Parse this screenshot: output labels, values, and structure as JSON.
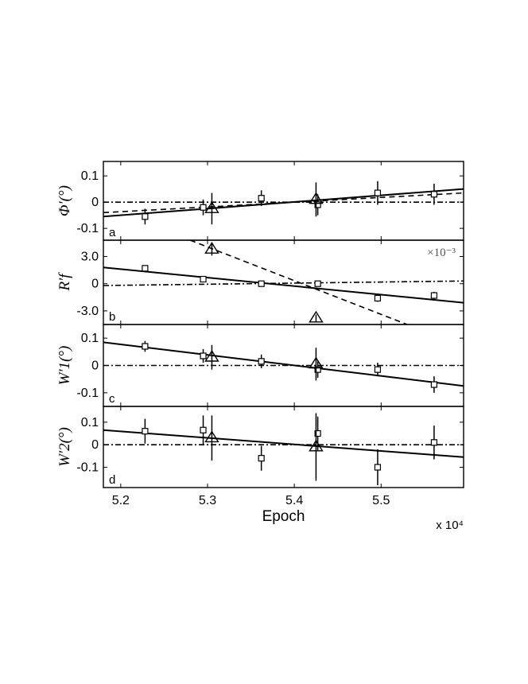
{
  "chart_data": [
    {
      "type": "scatter",
      "panel": "a",
      "ylabel": "Φ′(°)",
      "xlim": [
        51800,
        55950
      ],
      "ylim": [
        -0.145,
        0.155
      ],
      "yticks": [
        0.1,
        0,
        -0.1
      ],
      "ytick_labels": [
        "0.1",
        "0",
        "-0.1"
      ],
      "series": [
        {
          "marker": "square",
          "points": [
            {
              "x": 52280,
              "y": -0.055,
              "err": 0.03
            },
            {
              "x": 52950,
              "y": -0.02,
              "err": 0.03
            },
            {
              "x": 53620,
              "y": 0.015,
              "err": 0.03
            },
            {
              "x": 54270,
              "y": -0.01,
              "err": 0.04
            },
            {
              "x": 54960,
              "y": 0.035,
              "err": 0.045
            },
            {
              "x": 55610,
              "y": 0.03,
              "err": 0.04
            }
          ]
        },
        {
          "marker": "triangle",
          "points": [
            {
              "x": 53050,
              "y": -0.025,
              "err": 0.06
            },
            {
              "x": 54250,
              "y": 0.01,
              "err": 0.065
            }
          ]
        }
      ],
      "lines": [
        {
          "style": "solid",
          "x": [
            51800,
            55950
          ],
          "y": [
            -0.055,
            0.05
          ]
        },
        {
          "style": "dashed",
          "x": [
            51800,
            55950
          ],
          "y": [
            -0.04,
            0.035
          ]
        },
        {
          "style": "dashdot",
          "x": [
            51800,
            55950
          ],
          "y": [
            0,
            0
          ]
        }
      ]
    },
    {
      "type": "scatter",
      "panel": "b",
      "ylabel": "R′f",
      "scale_note": "×10⁻³",
      "xlim": [
        51800,
        55950
      ],
      "ylim": [
        -0.0045,
        0.0048
      ],
      "yticks": [
        0.003,
        0,
        -0.003
      ],
      "ytick_labels": [
        "3.0",
        "0",
        "-3.0"
      ],
      "series": [
        {
          "marker": "square",
          "points": [
            {
              "x": 52280,
              "y": 0.0017,
              "err": 0.0003
            },
            {
              "x": 52950,
              "y": 0.0005,
              "err": 0.0003
            },
            {
              "x": 53620,
              "y": 0.0,
              "err": 0.0003
            },
            {
              "x": 54270,
              "y": 0.0,
              "err": 0.0003
            },
            {
              "x": 54960,
              "y": -0.0016,
              "err": 0.0004
            },
            {
              "x": 55610,
              "y": -0.0013,
              "err": 0.0004
            }
          ]
        },
        {
          "marker": "triangle",
          "points": [
            {
              "x": 53050,
              "y": 0.0038,
              "err": 0.0007
            },
            {
              "x": 54250,
              "y": -0.0038,
              "err": 0.0004
            }
          ]
        }
      ],
      "lines": [
        {
          "style": "solid",
          "x": [
            51800,
            55950
          ],
          "y": [
            0.0018,
            -0.0021
          ]
        },
        {
          "style": "dashed",
          "x": [
            52800,
            55300
          ],
          "y": [
            0.0048,
            -0.0045
          ]
        },
        {
          "style": "dashdot",
          "x": [
            51800,
            55950
          ],
          "y": [
            -0.0002,
            0.0003
          ]
        }
      ]
    },
    {
      "type": "scatter",
      "panel": "c",
      "ylabel": "W′1(°)",
      "xlim": [
        51800,
        55950
      ],
      "ylim": [
        -0.15,
        0.15
      ],
      "yticks": [
        0.1,
        0,
        -0.1
      ],
      "ytick_labels": [
        "0.1",
        "0",
        "-0.1"
      ],
      "series": [
        {
          "marker": "square",
          "points": [
            {
              "x": 52280,
              "y": 0.07,
              "err": 0.02
            },
            {
              "x": 52950,
              "y": 0.035,
              "err": 0.025
            },
            {
              "x": 53620,
              "y": 0.015,
              "err": 0.025
            },
            {
              "x": 54270,
              "y": -0.015,
              "err": 0.03
            },
            {
              "x": 54960,
              "y": -0.015,
              "err": 0.025
            },
            {
              "x": 55610,
              "y": -0.07,
              "err": 0.03
            }
          ]
        },
        {
          "marker": "triangle",
          "points": [
            {
              "x": 53050,
              "y": 0.03,
              "err": 0.045
            },
            {
              "x": 54250,
              "y": 0.005,
              "err": 0.06
            }
          ]
        }
      ],
      "lines": [
        {
          "style": "solid",
          "x": [
            51800,
            55950
          ],
          "y": [
            0.085,
            -0.075
          ]
        },
        {
          "style": "dashdot",
          "x": [
            51800,
            55950
          ],
          "y": [
            0,
            0
          ]
        }
      ]
    },
    {
      "type": "scatter",
      "panel": "d",
      "ylabel": "W′2(°)",
      "xlabel": "Epoch",
      "x_scale_note": "x 10⁴",
      "xlim": [
        51800,
        55950
      ],
      "ylim": [
        -0.19,
        0.17
      ],
      "yticks": [
        0.1,
        0,
        -0.1
      ],
      "ytick_labels": [
        "0.1",
        "0",
        "-0.1"
      ],
      "xticks": [
        52000,
        53000,
        54000,
        55000
      ],
      "xtick_labels": [
        "5.2",
        "5.3",
        "5.4",
        "5.5"
      ],
      "series": [
        {
          "marker": "square",
          "points": [
            {
              "x": 52280,
              "y": 0.06,
              "err": 0.055
            },
            {
              "x": 52950,
              "y": 0.065,
              "err": 0.065
            },
            {
              "x": 53620,
              "y": -0.06,
              "err": 0.055
            },
            {
              "x": 54270,
              "y": 0.05,
              "err": 0.075
            },
            {
              "x": 54960,
              "y": -0.1,
              "err": 0.08
            },
            {
              "x": 55610,
              "y": 0.01,
              "err": 0.075
            }
          ]
        },
        {
          "marker": "triangle",
          "points": [
            {
              "x": 53050,
              "y": 0.03,
              "err": 0.1
            },
            {
              "x": 54250,
              "y": -0.01,
              "err": 0.15
            }
          ]
        }
      ],
      "lines": [
        {
          "style": "solid",
          "x": [
            51800,
            55950
          ],
          "y": [
            0.065,
            -0.055
          ]
        },
        {
          "style": "dashdot",
          "x": [
            51800,
            55950
          ],
          "y": [
            0,
            0
          ]
        }
      ]
    }
  ]
}
